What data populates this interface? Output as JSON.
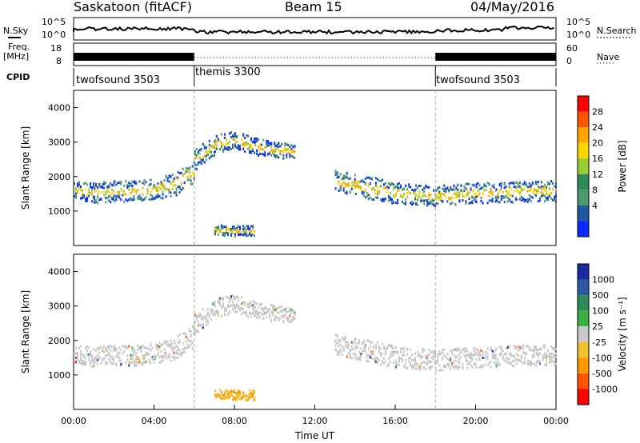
{
  "header": {
    "station": "Saskatoon (fitACF)",
    "beam": "Beam 15",
    "date": "04/May/2016"
  },
  "strip_labels": {
    "nsky": "N.Sky",
    "nsearch": "N.Search",
    "freq": "Freq.",
    "freq_unit": "[MHz]",
    "nave": "Nave",
    "cpid": "CPID"
  },
  "strip_ticks": {
    "noise_left": [
      "10^5",
      "10^0"
    ],
    "noise_right": [
      "10^5",
      "10^0"
    ],
    "freq_left": [
      "18",
      "8"
    ],
    "nave_right": [
      "60",
      "0"
    ]
  },
  "cpid_segments": [
    {
      "label": "twofsound 3503",
      "start": 0,
      "end": 6
    },
    {
      "label": "themis 3300",
      "start": 6,
      "end": 18
    },
    {
      "label": "twofsound 3503",
      "start": 18,
      "end": 24
    }
  ],
  "colorbars": {
    "power": {
      "title": "Power [dB]",
      "ticks": [
        "28",
        "24",
        "20",
        "16",
        "12",
        "8",
        "4"
      ],
      "colors": [
        "#ff0000",
        "#ff5500",
        "#ffa500",
        "#ffd700",
        "#9acd32",
        "#2e8b57",
        "#4a9a6e",
        "#1c5aa6",
        "#0a2aff"
      ]
    },
    "velocity": {
      "title": "Velocity [m s⁻¹]",
      "ticks": [
        "1000",
        "500",
        "100",
        "25",
        "-25",
        "-100",
        "-500",
        "-1000"
      ],
      "colors": [
        "#1a2aa0",
        "#2a5aa0",
        "#2e8b57",
        "#3cb043",
        "#c8c8c8",
        "#f0c030",
        "#ff9900",
        "#ff5500",
        "#ff0000"
      ]
    }
  },
  "chart_data": [
    {
      "type": "heatmap",
      "title": "Power",
      "ylabel": "Slant Range [km]",
      "ylim": [
        0,
        4500
      ],
      "yticks": [
        "1000",
        "2000",
        "3000",
        "4000"
      ],
      "xlim": [
        0,
        24
      ],
      "scatter_bands": [
        {
          "x": [
            0,
            1,
            2,
            3,
            4,
            5,
            6
          ],
          "range_center": [
            1650,
            1550,
            1600,
            1600,
            1650,
            1800,
            2200
          ],
          "range_width": [
            250,
            300,
            300,
            300,
            300,
            350,
            350
          ]
        },
        {
          "x": [
            6,
            7,
            8,
            9,
            10,
            11
          ],
          "range_center": [
            2500,
            2950,
            3100,
            2900,
            2800,
            2750
          ],
          "range_width": [
            300,
            300,
            250,
            250,
            250,
            200
          ]
        },
        {
          "x": [
            13,
            14,
            15,
            16,
            17,
            18,
            19,
            20,
            21,
            22,
            23,
            24
          ],
          "range_center": [
            1900,
            1800,
            1650,
            1550,
            1500,
            1450,
            1500,
            1550,
            1550,
            1600,
            1600,
            1600
          ],
          "range_width": [
            300,
            300,
            350,
            300,
            300,
            300,
            300,
            300,
            300,
            300,
            300,
            300
          ]
        },
        {
          "x": [
            7,
            8,
            9
          ],
          "range_center": [
            500,
            450,
            450
          ],
          "range_width": [
            150,
            150,
            150
          ]
        }
      ]
    },
    {
      "type": "heatmap",
      "title": "Velocity",
      "ylabel": "Slant Range [km]",
      "ylim": [
        0,
        4500
      ],
      "yticks": [
        "1000",
        "2000",
        "3000",
        "4000"
      ],
      "xlim": [
        0,
        24
      ],
      "xlabel": "Time UT",
      "xticks": [
        "00:00",
        "04:00",
        "08:00",
        "12:00",
        "16:00",
        "20:00",
        "00:00"
      ]
    }
  ]
}
